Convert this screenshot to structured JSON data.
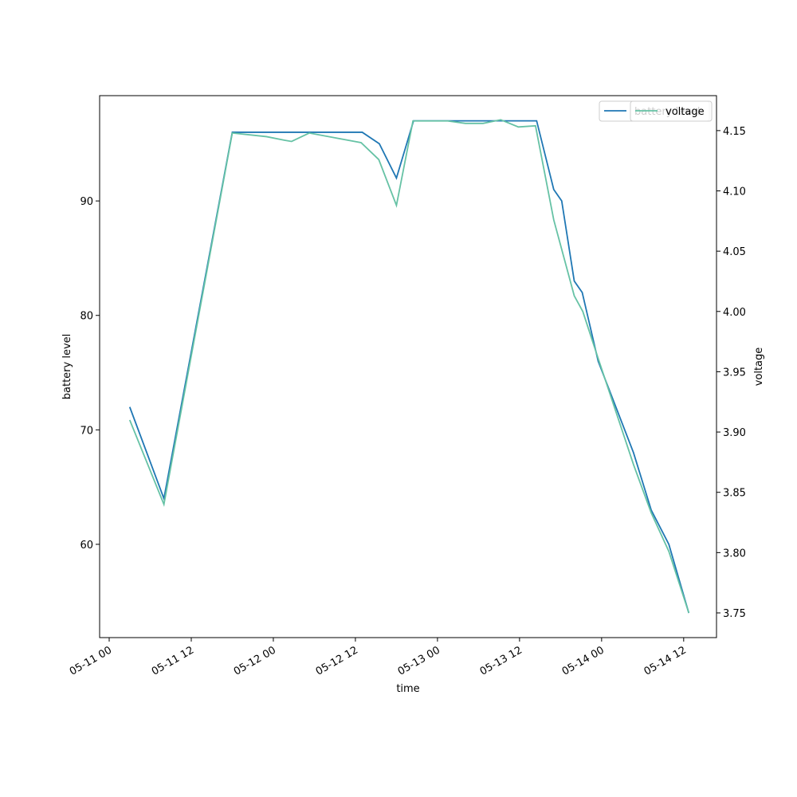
{
  "chart_data": {
    "type": "line",
    "xlabel": "time",
    "ylabel": "battery level",
    "y2label": "voltage",
    "xlim": [
      "05-10 22:36",
      "05-14 16:48"
    ],
    "xticks": [
      "05-11 00",
      "05-11 12",
      "05-12 00",
      "05-12 12",
      "05-13 00",
      "05-13 12",
      "05-14 00",
      "05-14 12"
    ],
    "ylim": [
      51.85,
      99.2
    ],
    "yticks": [
      60,
      70,
      80,
      90
    ],
    "y2lim": [
      3.7295,
      4.179
    ],
    "y2ticks": [
      3.75,
      {
        "value": 3.8,
        "label": "3.80"
      },
      3.85,
      {
        "value": 3.9,
        "label": "3.90"
      },
      3.95,
      {
        "value": 4.0,
        "label": "4.00"
      },
      4.05,
      {
        "value": 4.1,
        "label": "4.10"
      },
      4.15
    ],
    "series": [
      {
        "name": "battery level",
        "color": "#1f77b4",
        "x": [
          "05-11 03:00",
          "05-11 08:00",
          "05-11 18:00",
          "05-12 13:00",
          "05-12 15:30",
          "05-12 18:00",
          "05-12 20:30",
          "05-13 14:30",
          "05-13 17:00",
          "05-13 18:10",
          "05-13 20:00",
          "05-13 21:10",
          "05-13 23:30",
          "05-14 04:40",
          "05-14 07:15",
          "05-14 09:50",
          "05-14 12:45"
        ],
        "values": [
          72,
          64,
          96,
          96,
          95,
          92,
          97,
          97,
          91,
          90,
          83,
          82,
          76,
          68,
          63,
          60,
          54
        ]
      },
      {
        "name": "voltage",
        "color": "#66c2a5",
        "axis": "y2",
        "x": [
          "05-11 03:00",
          "05-11 08:00",
          "05-11 18:00",
          "05-11 23:00",
          "05-12 01:40",
          "05-12 02:40",
          "05-12 05:15",
          "05-12 12:50",
          "05-12 15:25",
          "05-12 18:00",
          "05-12 20:25",
          "05-12 23:00",
          "05-13 01:30",
          "05-13 04:05",
          "05-13 06:40",
          "05-13 09:15",
          "05-13 11:50",
          "05-13 14:20",
          "05-13 17:00",
          "05-13 20:00",
          "05-13 21:15",
          "05-13 23:30",
          "05-14 04:40",
          "05-14 07:15",
          "05-14 09:50",
          "05-14 12:45"
        ],
        "values": [
          3.91,
          3.84,
          4.148,
          4.145,
          4.142,
          4.141,
          4.148,
          4.14,
          4.126,
          4.088,
          4.158,
          4.158,
          4.158,
          4.156,
          4.156,
          4.159,
          4.153,
          4.154,
          4.076,
          4.013,
          4.0,
          3.961,
          3.873,
          3.833,
          3.801,
          3.75
        ]
      }
    ]
  }
}
